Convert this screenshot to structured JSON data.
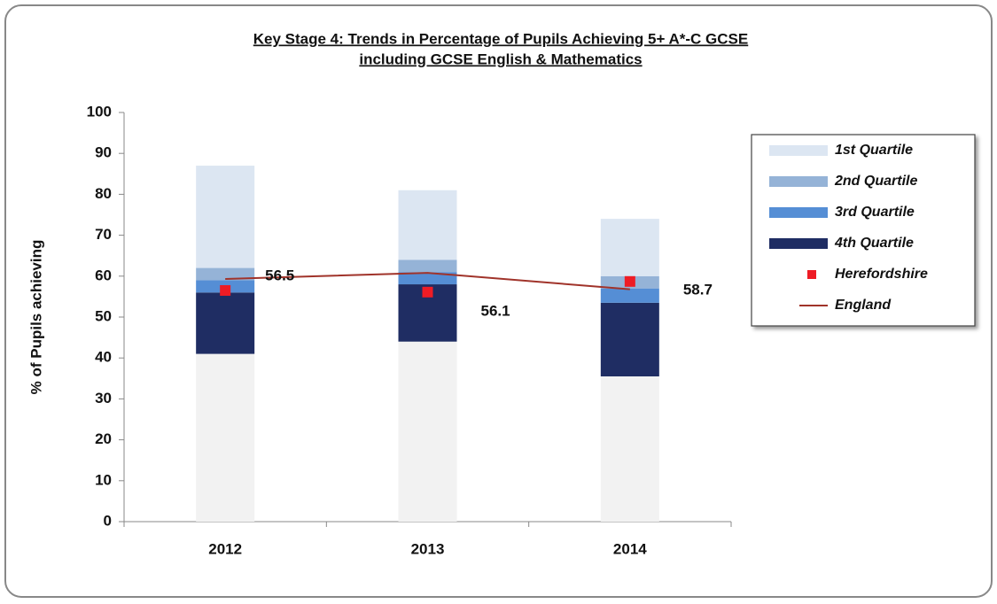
{
  "chart_data": {
    "type": "bar",
    "stacked": true,
    "title": [
      "Key Stage 4: Trends in Percentage of  Pupils  Achieving 5+ A*-C GCSE",
      "including GCSE English & Mathematics"
    ],
    "ylabel": "% of Pupils achieving",
    "categories": [
      "2012",
      "2013",
      "2014"
    ],
    "ylim": [
      0,
      100
    ],
    "yticks": [
      0,
      10,
      20,
      30,
      40,
      50,
      60,
      70,
      80,
      90,
      100
    ],
    "grid": false,
    "legend": "right",
    "series": [
      {
        "type": "bar",
        "color": "#f2f2f2",
        "values": [
          41,
          44,
          35.5
        ]
      },
      {
        "type": "bar",
        "name": "4th Quartile",
        "color": "#1f2d63",
        "values": [
          15,
          14,
          18
        ]
      },
      {
        "type": "bar",
        "name": "3rd Quartile",
        "color": "#558ed5",
        "values": [
          3,
          3,
          3.5
        ]
      },
      {
        "type": "bar",
        "name": "2nd Quartile",
        "color": "#95b3d7",
        "values": [
          3,
          3,
          3
        ]
      },
      {
        "type": "bar",
        "name": "1st Quartile",
        "color": "#dce6f2",
        "values": [
          25,
          17,
          14
        ]
      },
      {
        "type": "scatter",
        "name": "Herefordshire",
        "color": "#ee1c25",
        "values": [
          56.5,
          56.1,
          58.7
        ],
        "data_labels": true
      },
      {
        "type": "line",
        "name": "England",
        "color": "#a0332a",
        "values": [
          59.3,
          60.8,
          56.8
        ]
      }
    ]
  }
}
